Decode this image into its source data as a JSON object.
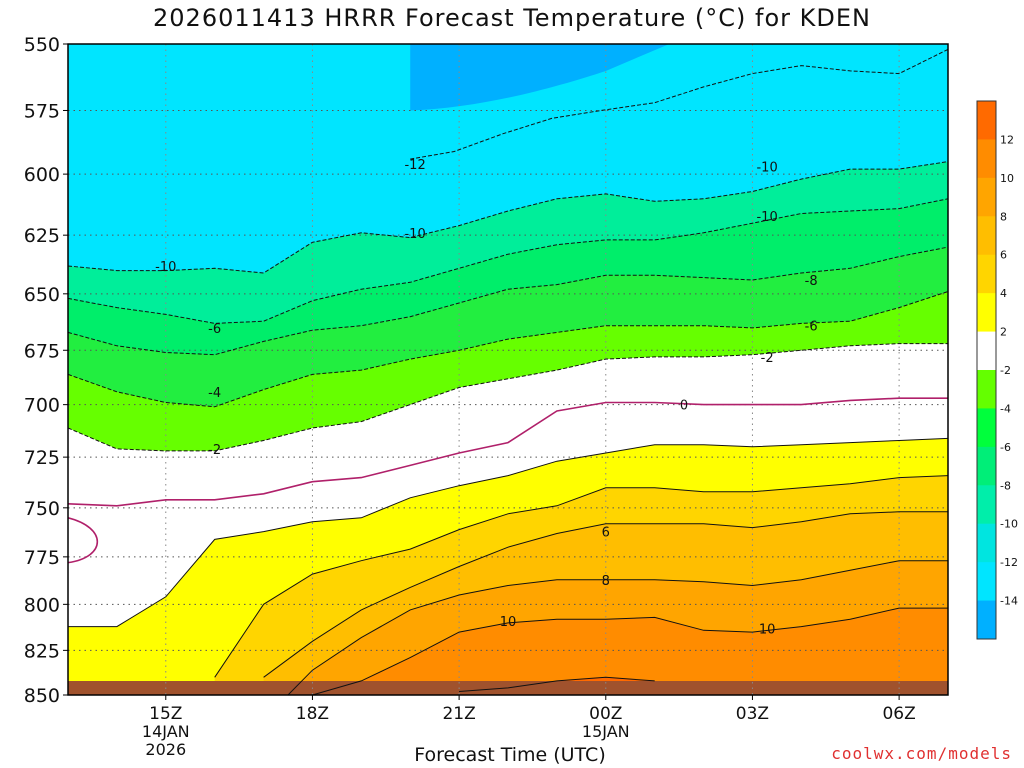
{
  "chart_data": {
    "type": "contour",
    "title": "2026011413 HRRR Forecast Temperature (°C) for KDEN",
    "xlabel": "Forecast Time (UTC)",
    "ylabel": "",
    "x_ticks": [
      {
        "label": "15Z",
        "sub": [
          "14JAN",
          "2026"
        ]
      },
      {
        "label": "18Z",
        "sub": []
      },
      {
        "label": "21Z",
        "sub": []
      },
      {
        "label": "00Z",
        "sub": [
          "15JAN"
        ]
      },
      {
        "label": "03Z",
        "sub": []
      },
      {
        "label": "06Z",
        "sub": []
      }
    ],
    "x_hours": [
      15,
      18,
      21,
      24,
      27,
      30
    ],
    "x_range": [
      13,
      31
    ],
    "y_range": [
      550,
      850
    ],
    "y_ticks": [
      550,
      575,
      600,
      625,
      650,
      675,
      700,
      725,
      750,
      775,
      800,
      825,
      850
    ],
    "y_scale": "log-pressure (inverted)",
    "grid": true,
    "colorbar_labels": [
      "12",
      "10",
      "8",
      "6",
      "4",
      "2",
      "-2",
      "-4",
      "-6",
      "-8",
      "-10",
      "-12",
      "-14"
    ],
    "colorbar_colors": [
      "#ff6a00",
      "#ff8c00",
      "#ffa500",
      "#ffbe00",
      "#ffd500",
      "#ffff00",
      "#ffffff",
      "#64ff00",
      "#00ff3c",
      "#00ee78",
      "#00eeaa",
      "#00e5e0",
      "#00e5ff",
      "#00b0ff"
    ],
    "contour_labels": [
      "-12",
      "-10",
      "-10",
      "-10",
      "-10",
      "-8",
      "-6",
      "-6",
      "-4",
      "-2",
      "-2",
      "0",
      "6",
      "8",
      "10",
      "10"
    ],
    "series": [
      {
        "level": -12,
        "x": [
          20,
          20.9,
          21.9,
          22.9,
          23.9,
          25,
          26,
          27,
          28,
          29,
          30,
          31
        ],
        "y": [
          594,
          591,
          584,
          578,
          575,
          572,
          566,
          561,
          558,
          560,
          561,
          552
        ]
      },
      {
        "level": -10,
        "x": [
          13,
          14,
          15,
          16,
          17,
          18,
          19,
          20,
          21,
          22,
          23,
          24,
          25,
          26,
          27,
          28,
          29,
          30,
          31
        ],
        "y": [
          638,
          640,
          640,
          639,
          641,
          628,
          624,
          626,
          621,
          615,
          610,
          608,
          611,
          610,
          607,
          602,
          598,
          598,
          595
        ]
      },
      {
        "level": -8,
        "x": [
          13,
          14,
          15,
          16,
          17,
          18,
          19,
          20,
          21,
          22,
          23,
          24,
          25,
          26,
          27,
          28,
          29,
          30,
          31
        ],
        "y": [
          652,
          656,
          659,
          663,
          662,
          653,
          648,
          645,
          639,
          633,
          629,
          627,
          627,
          624,
          620,
          616,
          615,
          614,
          610
        ]
      },
      {
        "level": -6,
        "x": [
          13,
          14,
          15,
          16,
          17,
          18,
          19,
          20,
          21,
          22,
          23,
          24,
          25,
          26,
          27,
          28,
          29,
          30,
          31
        ],
        "y": [
          667,
          673,
          676,
          677,
          671,
          666,
          664,
          660,
          654,
          648,
          646,
          642,
          642,
          643,
          644,
          641,
          639,
          634,
          630
        ]
      },
      {
        "level": -4,
        "x": [
          13,
          14,
          15,
          16,
          17,
          18,
          19,
          20,
          21,
          22,
          23,
          24,
          25,
          26,
          27,
          28,
          29,
          30,
          31
        ],
        "y": [
          686,
          694,
          699,
          701,
          693,
          686,
          684,
          679,
          675,
          670,
          667,
          664,
          664,
          664,
          665,
          663,
          662,
          656,
          649
        ]
      },
      {
        "level": -2,
        "x": [
          13,
          14,
          15,
          16,
          17,
          18,
          19,
          20,
          21,
          22,
          23,
          24,
          25,
          26,
          27,
          28,
          29,
          30,
          31
        ],
        "y": [
          711,
          721,
          722,
          722,
          717,
          711,
          708,
          700,
          692,
          688,
          684,
          679,
          678,
          678,
          677,
          675,
          673,
          672,
          672
        ]
      },
      {
        "level": 0,
        "x": [
          13,
          14,
          15,
          16,
          17,
          18,
          19,
          20,
          21,
          22,
          23,
          24,
          25,
          26,
          27,
          28,
          29,
          30,
          31
        ],
        "y": [
          748,
          749,
          746,
          746,
          743,
          737,
          735,
          729,
          723,
          718,
          703,
          699,
          699,
          700,
          700,
          700,
          698,
          697,
          697
        ]
      },
      {
        "level": 2,
        "x": [
          13,
          14,
          15,
          16,
          17,
          18,
          19,
          20,
          21,
          22,
          23,
          24,
          25,
          26,
          27,
          28,
          29,
          30,
          31
        ],
        "y": [
          812,
          812,
          796,
          766,
          762,
          757,
          755,
          745,
          739,
          734,
          727,
          723,
          719,
          719,
          720,
          719,
          718,
          717,
          716
        ]
      },
      {
        "level": 4,
        "x": [
          16,
          17,
          18,
          19,
          20,
          21,
          22,
          23,
          24,
          25,
          26,
          27,
          28,
          29,
          30,
          31
        ],
        "y": [
          840,
          800,
          784,
          777,
          771,
          761,
          753,
          749,
          740,
          740,
          742,
          742,
          740,
          738,
          735,
          734
        ]
      },
      {
        "level": 6,
        "x": [
          17,
          18,
          19,
          20,
          21,
          22,
          23,
          24,
          25,
          26,
          27,
          28,
          29,
          30,
          31
        ],
        "y": [
          840,
          820,
          803,
          791,
          780,
          770,
          763,
          758,
          758,
          758,
          760,
          757,
          753,
          752,
          752
        ]
      },
      {
        "level": 8,
        "x": [
          17.5,
          18,
          19,
          20,
          21,
          22,
          23,
          24,
          25,
          26,
          27,
          28,
          29,
          30,
          31
        ],
        "y": [
          850,
          836,
          818,
          803,
          795,
          790,
          787,
          787,
          787,
          788,
          790,
          787,
          782,
          777,
          777
        ]
      },
      {
        "level": 10,
        "x": [
          18,
          19,
          20,
          21,
          22,
          23,
          24,
          25,
          26,
          27,
          28,
          29,
          30,
          31
        ],
        "y": [
          850,
          842,
          829,
          815,
          810,
          808,
          808,
          807,
          814,
          815,
          812,
          808,
          802,
          802
        ]
      },
      {
        "level": 12,
        "x": [
          21,
          22,
          23,
          24,
          25
        ],
        "y": [
          848,
          846,
          842,
          840,
          842
        ]
      }
    ]
  }
}
